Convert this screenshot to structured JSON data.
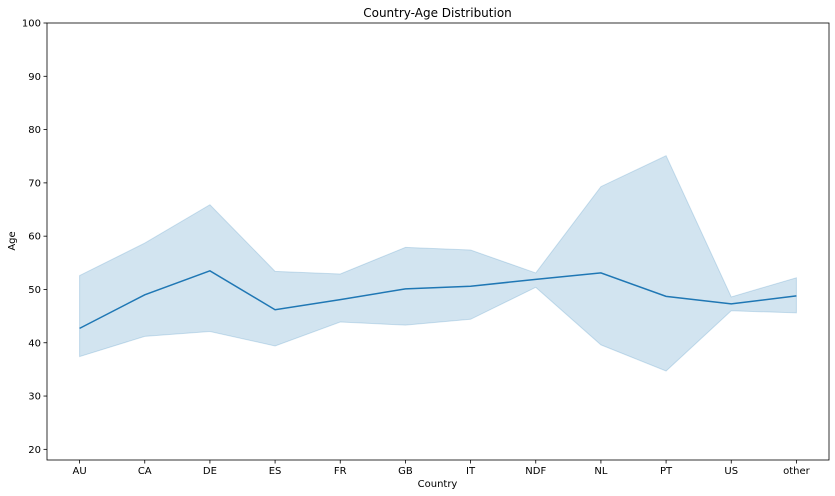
{
  "chart_data": {
    "type": "line",
    "title": "Country-Age Distribution",
    "xlabel": "Country",
    "ylabel": "Age",
    "categories": [
      "AU",
      "CA",
      "DE",
      "ES",
      "FR",
      "GB",
      "IT",
      "NDF",
      "NL",
      "PT",
      "US",
      "other"
    ],
    "series": [
      {
        "values": [
          42.7,
          49.0,
          53.5,
          46.2,
          48.1,
          50.1,
          50.6,
          51.9,
          53.1,
          48.7,
          47.3,
          48.8
        ],
        "ci_lower": [
          37.4,
          41.2,
          42.1,
          39.4,
          43.9,
          43.3,
          44.4,
          50.4,
          39.6,
          34.7,
          46.0,
          45.6
        ],
        "ci_upper": [
          52.6,
          58.7,
          65.9,
          53.4,
          52.9,
          57.9,
          57.4,
          53.1,
          69.3,
          75.1,
          48.6,
          52.2
        ]
      }
    ],
    "ylim": [
      18,
      100
    ],
    "yticks": [
      20,
      30,
      40,
      50,
      60,
      70,
      80,
      90,
      100
    ],
    "grid": false,
    "colors": {
      "line": "#1f77b4",
      "band": "#1f77b4"
    }
  }
}
